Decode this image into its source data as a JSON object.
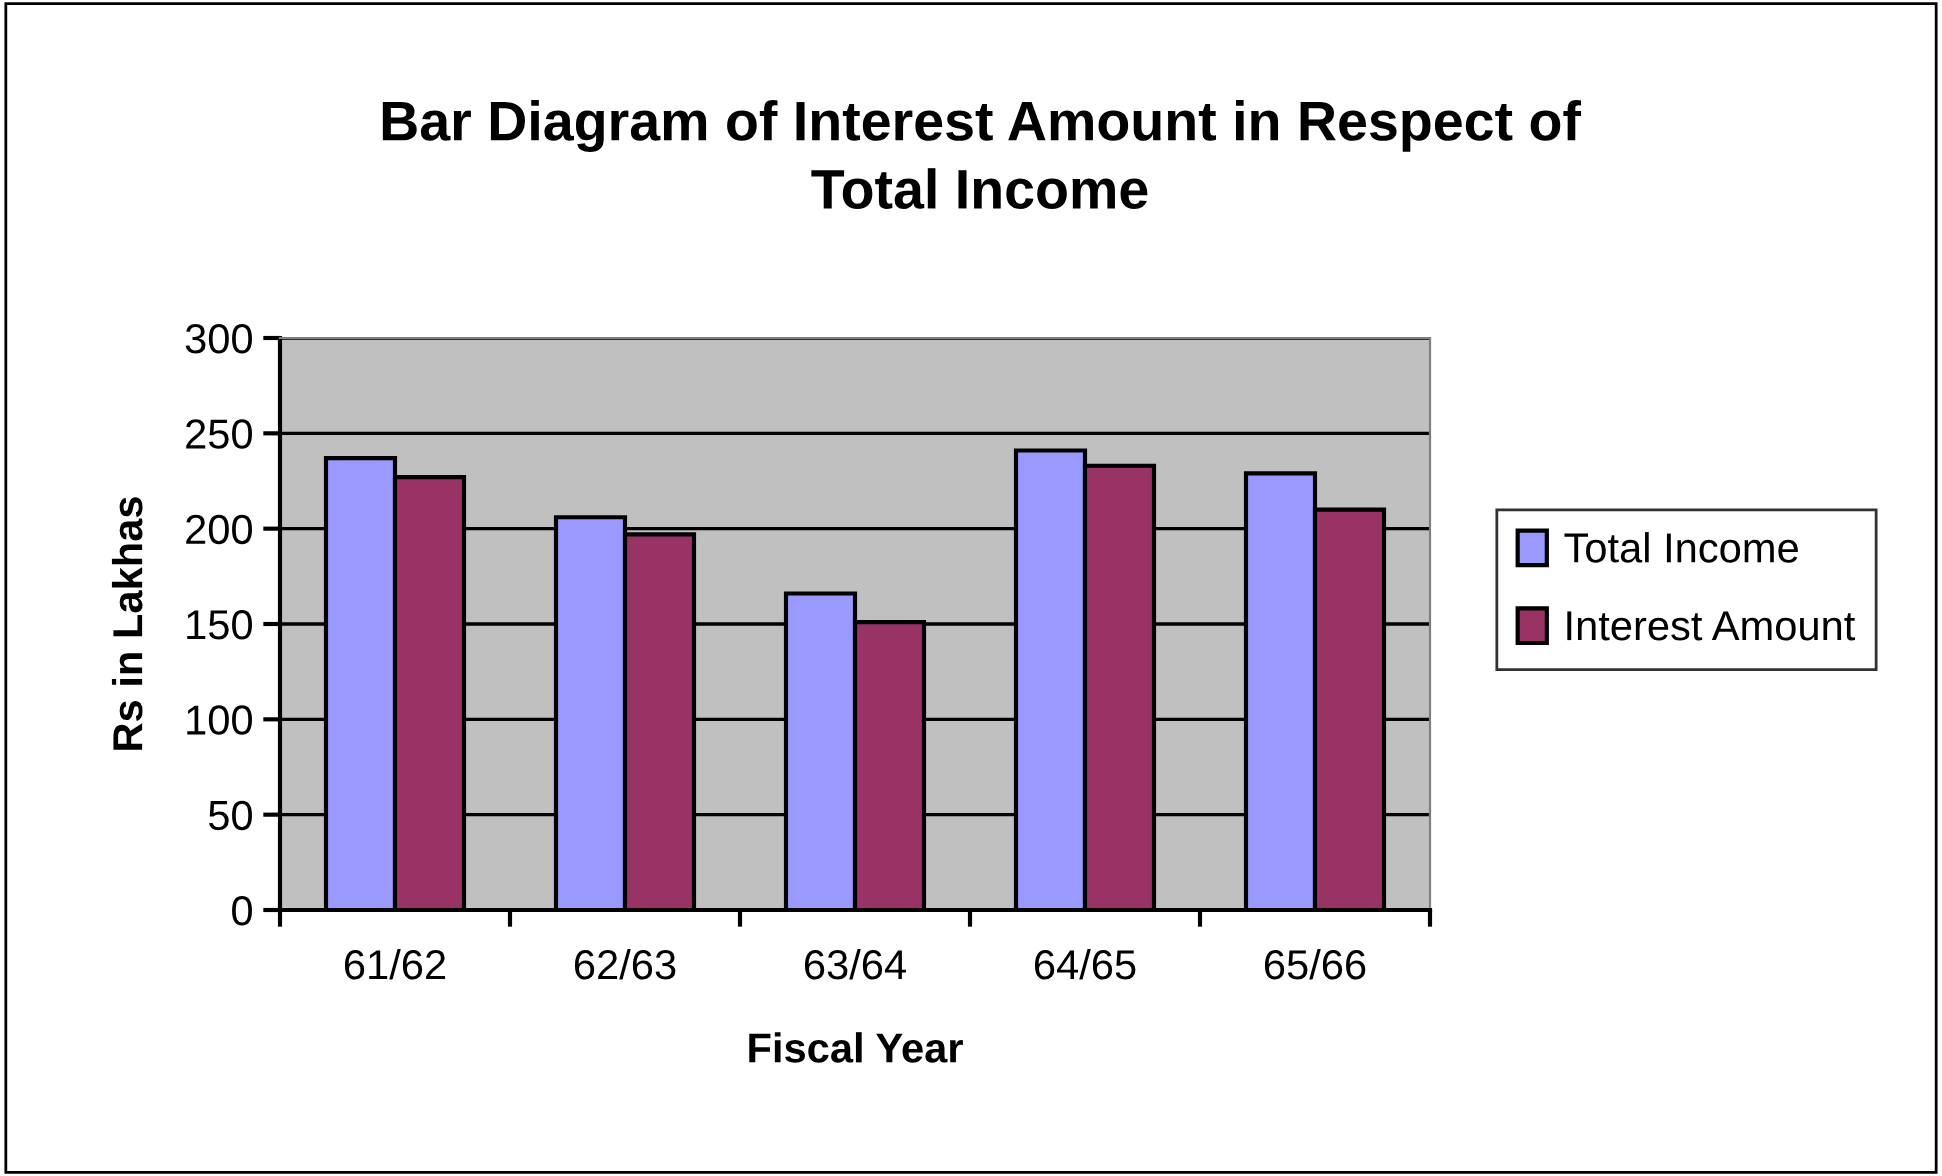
{
  "chart_data": {
    "type": "bar",
    "title": "Bar Diagram of Interest Amount in Respect of\nTotal Income",
    "xlabel": "Fiscal Year",
    "ylabel": "Rs in Lakhas",
    "categories": [
      "61/62",
      "62/63",
      "63/64",
      "64/65",
      "65/66"
    ],
    "series": [
      {
        "name": "Total Income",
        "color": "#9999ff",
        "values": [
          237,
          206,
          166,
          241,
          229
        ]
      },
      {
        "name": "Interest Amount",
        "color": "#993366",
        "values": [
          227,
          197,
          151,
          233,
          210
        ]
      }
    ],
    "ylim": [
      0,
      300
    ],
    "yticks": [
      0,
      50,
      100,
      150,
      200,
      250,
      300
    ],
    "grid": "y",
    "legend": "right"
  }
}
